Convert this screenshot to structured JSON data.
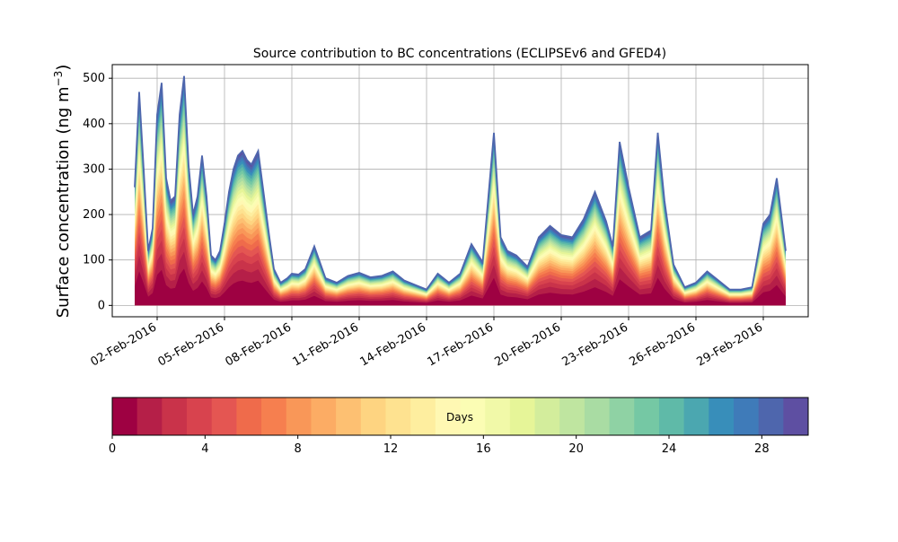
{
  "chart_data": {
    "type": "area",
    "title": "Source contribution to BC concentrations (ECLIPSEv6 and GFED4)",
    "xlabel": "",
    "ylabel": "Surface concentration (ng m",
    "ylabel_superscript": "−3",
    "ylabel_suffix": ")",
    "ylim": [
      -25,
      530
    ],
    "yticks": [
      0,
      100,
      200,
      300,
      400,
      500
    ],
    "grid": true,
    "x_tick_labels": [
      "02-Feb-2016",
      "05-Feb-2016",
      "08-Feb-2016",
      "11-Feb-2016",
      "14-Feb-2016",
      "17-Feb-2016",
      "20-Feb-2016",
      "23-Feb-2016",
      "26-Feb-2016",
      "29-Feb-2016"
    ],
    "x_start": "31-Jan-2016",
    "x_end": "02-Mar-2016",
    "x": [
      1.0,
      1.2,
      1.4,
      1.6,
      1.8,
      2.0,
      2.2,
      2.4,
      2.6,
      2.8,
      3.0,
      3.2,
      3.4,
      3.6,
      3.8,
      4.0,
      4.2,
      4.4,
      4.6,
      4.8,
      5.0,
      5.2,
      5.4,
      5.6,
      5.8,
      6.0,
      6.2,
      6.5,
      7.0,
      7.2,
      7.5,
      7.8,
      8.0,
      8.3,
      8.6,
      9.0,
      9.5,
      10.0,
      10.5,
      11.0,
      11.5,
      12.0,
      12.5,
      13.0,
      13.5,
      14.0,
      14.5,
      15.0,
      15.5,
      16.0,
      16.5,
      17.0,
      17.3,
      17.6,
      18.0,
      18.5,
      19.0,
      19.5,
      20.0,
      20.5,
      21.0,
      21.5,
      22.0,
      22.3,
      22.6,
      23.0,
      23.5,
      24.0,
      24.3,
      24.6,
      25.0,
      25.5,
      26.0,
      26.5,
      27.0,
      27.5,
      28.0,
      28.5,
      29.0,
      29.3,
      29.6,
      30.0
    ],
    "total": [
      260,
      470,
      300,
      120,
      170,
      420,
      490,
      280,
      230,
      240,
      420,
      505,
      310,
      200,
      240,
      330,
      240,
      110,
      100,
      120,
      180,
      250,
      300,
      330,
      340,
      320,
      310,
      340,
      150,
      80,
      50,
      60,
      70,
      68,
      80,
      130,
      60,
      50,
      65,
      72,
      62,
      65,
      75,
      55,
      45,
      35,
      70,
      50,
      70,
      135,
      95,
      380,
      150,
      120,
      110,
      85,
      150,
      175,
      155,
      150,
      190,
      250,
      185,
      130,
      360,
      260,
      150,
      165,
      380,
      230,
      90,
      40,
      50,
      75,
      55,
      35,
      35,
      40,
      180,
      200,
      280,
      120
    ],
    "day_tick_labels": [
      "0",
      "4",
      "8",
      "12",
      "16",
      "20",
      "24",
      "28"
    ],
    "day_range": [
      0,
      30
    ],
    "colorbar_label": "Days",
    "colormap": [
      "#9e0142",
      "#b51f48",
      "#c9334a",
      "#d8434e",
      "#e45652",
      "#ef6b4b",
      "#f67f4f",
      "#f99758",
      "#fcac64",
      "#fdc072",
      "#fed481",
      "#fee290",
      "#feee9f",
      "#fff8b3",
      "#fbfdb4",
      "#f1f9a8",
      "#e6f598",
      "#d3ed9c",
      "#bfe5a0",
      "#a9dca3",
      "#8fd2a4",
      "#75c8a4",
      "#5fbaa8",
      "#4ba7b0",
      "#388eba",
      "#3f7bb9",
      "#4e66ad",
      "#5e4fa2"
    ],
    "line_color": "#4e66ad"
  }
}
